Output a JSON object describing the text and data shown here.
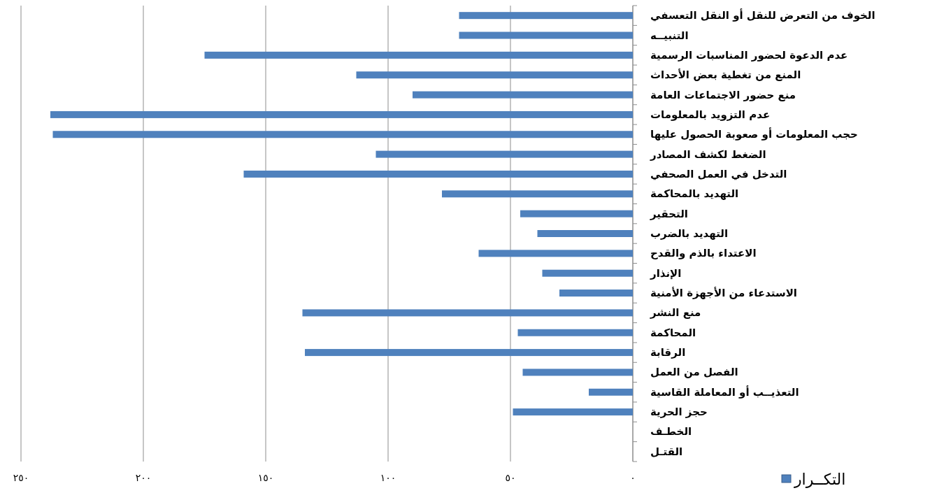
{
  "chart_data": {
    "type": "bar",
    "orientation": "horizontal",
    "categories": [
      "الخوف من التعرض للنقل أو النقل التعسفي",
      "التنبيــه",
      "عدم الدعوة لحضور المناسبات الرسمية",
      "المنع من تغطية بعض الأحداث",
      "منع حضور الاجتماعات العامة",
      "عدم التزويد بالمعلومات",
      "حجب المعلومات أو صعوبة الحصول عليها",
      "الضغط لكشف المصادر",
      "التدخل في العمل الصحفي",
      "التهديد بالمحاكمة",
      "التحقير",
      "التهديد بالضرب",
      "الاعتداء بالذم والقدح",
      "الإنذار",
      "الاستدعاء من الأجهزة الأمنية",
      "منع النشر",
      "المحاكمة",
      "الرقابة",
      "الفصل من العمل",
      "التعذيــب  أو المعاملة القاسية",
      "حجز الحرية",
      "الخطـف",
      "القتـل"
    ],
    "series": [
      {
        "name": "التكــرار",
        "color": "#4f81bd",
        "values": [
          71,
          71,
          175,
          113,
          90,
          238,
          237,
          105,
          159,
          78,
          46,
          39,
          63,
          37,
          30,
          135,
          47,
          134,
          45,
          18,
          49,
          0,
          0
        ]
      }
    ],
    "xlim": [
      250,
      0
    ],
    "xticks": [
      {
        "value": 0,
        "label": "٠"
      },
      {
        "value": 50,
        "label": "٥٠"
      },
      {
        "value": 100,
        "label": "١٠٠"
      },
      {
        "value": 150,
        "label": "١٥٠"
      },
      {
        "value": 200,
        "label": "٢٠٠"
      },
      {
        "value": 250,
        "label": "٢٥٠"
      }
    ],
    "grid": "x",
    "legend": "bottom right"
  }
}
